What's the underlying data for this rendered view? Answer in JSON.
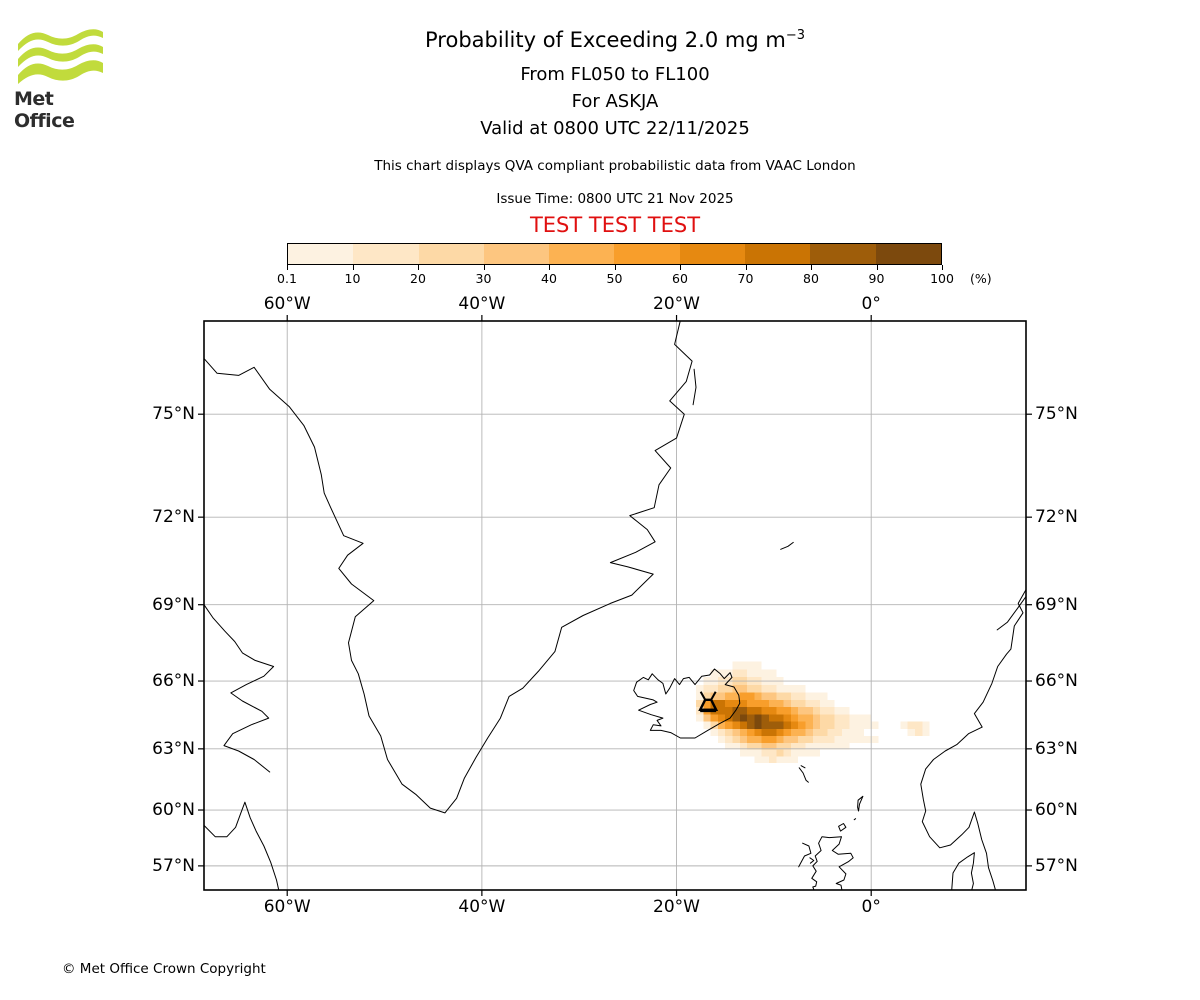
{
  "branding": {
    "logo_text": "Met Office",
    "logo_green": "#c1db3c"
  },
  "header": {
    "title_main": "Probability of Exceeding 2.0 mg m",
    "title_sup": "−3",
    "subtitle1": "From FL050 to FL100",
    "subtitle2": "For ASKJA",
    "subtitle3": "Valid at 0800 UTC 22/11/2025",
    "description": "This chart displays QVA compliant probabilistic data from VAAC London",
    "issue_time": "Issue Time: 0800 UTC 21 Nov 2025",
    "test_banner": "TEST TEST TEST",
    "test_color": "#e01010"
  },
  "colorbar": {
    "tick_labels": [
      "0.1",
      "10",
      "20",
      "30",
      "40",
      "50",
      "60",
      "70",
      "80",
      "90",
      "100"
    ],
    "unit_label": "(%)",
    "bin_colors": [
      "#fdf2e1",
      "#fee7c6",
      "#fdd9a6",
      "#fdc680",
      "#fcb252",
      "#f89e2b",
      "#e68911",
      "#ca7404",
      "#9e5d0a",
      "#7c490d"
    ]
  },
  "map": {
    "extent": {
      "lon_min": -68.55,
      "lon_max": 15.9,
      "lat_min": 55.45,
      "lat_max": 77.4
    },
    "grid_color": "#b3b3b3",
    "lon_labels": [
      {
        "text": "60°W",
        "lon": -60
      },
      {
        "text": "40°W",
        "lon": -40
      },
      {
        "text": "20°W",
        "lon": -20
      },
      {
        "text": "0°",
        "lon": 0
      }
    ],
    "lat_labels": [
      {
        "text": "75°N",
        "lat": 75
      },
      {
        "text": "72°N",
        "lat": 72
      },
      {
        "text": "69°N",
        "lat": 69
      },
      {
        "text": "66°N",
        "lat": 66
      },
      {
        "text": "63°N",
        "lat": 63
      },
      {
        "text": "60°N",
        "lat": 60
      },
      {
        "text": "57°N",
        "lat": 57
      }
    ],
    "coastlines": [
      [
        [
          -68.5,
          76.4
        ],
        [
          -67.2,
          76.05
        ],
        [
          -65.0,
          76.0
        ],
        [
          -63.4,
          76.2
        ],
        [
          -61.8,
          75.65
        ],
        [
          -59.8,
          75.2
        ],
        [
          -58.3,
          74.7
        ],
        [
          -57.2,
          74.1
        ],
        [
          -56.5,
          73.3
        ],
        [
          -56.2,
          72.75
        ],
        [
          -55.6,
          72.35
        ],
        [
          -54.2,
          71.4
        ],
        [
          -52.2,
          71.15
        ],
        [
          -53.8,
          70.75
        ],
        [
          -54.7,
          70.3
        ],
        [
          -53.4,
          69.75
        ],
        [
          -51.1,
          69.15
        ],
        [
          -53.0,
          68.55
        ],
        [
          -53.7,
          67.55
        ],
        [
          -53.4,
          66.85
        ],
        [
          -52.7,
          66.3
        ],
        [
          -52.1,
          65.45
        ],
        [
          -51.6,
          64.5
        ],
        [
          -50.4,
          63.6
        ],
        [
          -49.7,
          62.5
        ],
        [
          -48.2,
          61.3
        ],
        [
          -46.8,
          60.8
        ],
        [
          -45.3,
          60.1
        ],
        [
          -43.8,
          59.85
        ],
        [
          -42.6,
          60.6
        ],
        [
          -41.8,
          61.6
        ],
        [
          -40.6,
          62.6
        ],
        [
          -39.4,
          63.5
        ],
        [
          -38.1,
          64.4
        ],
        [
          -37.2,
          65.35
        ],
        [
          -35.8,
          65.7
        ],
        [
          -34.2,
          66.4
        ],
        [
          -32.5,
          67.2
        ],
        [
          -31.8,
          68.15
        ],
        [
          -29.6,
          68.6
        ],
        [
          -26.8,
          69.05
        ],
        [
          -24.6,
          69.35
        ],
        [
          -22.4,
          70.1
        ],
        [
          -25.0,
          70.35
        ],
        [
          -26.8,
          70.5
        ],
        [
          -24.2,
          70.85
        ],
        [
          -22.2,
          71.2
        ],
        [
          -23.0,
          71.6
        ],
        [
          -24.8,
          72.05
        ],
        [
          -22.3,
          72.3
        ],
        [
          -21.8,
          73.0
        ],
        [
          -20.6,
          73.5
        ],
        [
          -22.2,
          74.0
        ],
        [
          -20.0,
          74.35
        ],
        [
          -19.2,
          75.0
        ],
        [
          -20.7,
          75.35
        ],
        [
          -19.0,
          75.85
        ],
        [
          -18.4,
          76.35
        ],
        [
          -20.2,
          76.75
        ],
        [
          -19.5,
          77.4
        ]
      ],
      [
        [
          -18.2,
          76.15
        ],
        [
          -18.0,
          75.7
        ],
        [
          -18.3,
          75.25
        ]
      ],
      [
        [
          -68.55,
          69.0
        ],
        [
          -67.6,
          68.5
        ],
        [
          -66.4,
          68.0
        ],
        [
          -65.4,
          67.6
        ],
        [
          -64.6,
          67.15
        ],
        [
          -63.3,
          66.85
        ],
        [
          -61.4,
          66.6
        ],
        [
          -62.4,
          66.2
        ],
        [
          -64.2,
          65.85
        ],
        [
          -65.8,
          65.5
        ],
        [
          -64.6,
          65.15
        ],
        [
          -62.6,
          64.7
        ],
        [
          -61.9,
          64.4
        ],
        [
          -63.7,
          64.1
        ],
        [
          -65.6,
          63.7
        ],
        [
          -66.5,
          63.15
        ],
        [
          -65.0,
          62.9
        ],
        [
          -63.4,
          62.5
        ],
        [
          -61.8,
          61.9
        ]
      ],
      [
        [
          -68.55,
          59.2
        ],
        [
          -67.4,
          58.6
        ],
        [
          -66.2,
          58.6
        ],
        [
          -65.3,
          59.1
        ],
        [
          -64.8,
          59.8
        ],
        [
          -64.35,
          60.4
        ],
        [
          -63.8,
          59.6
        ],
        [
          -63.2,
          58.9
        ],
        [
          -62.4,
          58.1
        ],
        [
          -61.7,
          57.2
        ],
        [
          -61.1,
          56.2
        ],
        [
          -60.8,
          55.45
        ]
      ],
      [
        [
          -22.5,
          66.3
        ],
        [
          -21.9,
          66.05
        ],
        [
          -21.4,
          65.9
        ],
        [
          -21.1,
          65.45
        ],
        [
          -20.7,
          65.7
        ],
        [
          -20.2,
          66.1
        ],
        [
          -19.7,
          65.85
        ],
        [
          -19.3,
          66.1
        ],
        [
          -18.7,
          66.15
        ],
        [
          -18.1,
          65.85
        ],
        [
          -17.4,
          66.2
        ],
        [
          -16.6,
          66.25
        ],
        [
          -16.1,
          66.5
        ],
        [
          -15.5,
          66.3
        ],
        [
          -15.1,
          66.1
        ],
        [
          -14.5,
          66.35
        ],
        [
          -14.3,
          66.15
        ],
        [
          -15.0,
          65.85
        ],
        [
          -14.1,
          65.75
        ],
        [
          -13.6,
          65.4
        ],
        [
          -13.5,
          65.05
        ],
        [
          -13.9,
          64.75
        ],
        [
          -14.5,
          64.4
        ],
        [
          -15.6,
          64.15
        ],
        [
          -16.8,
          63.85
        ],
        [
          -18.1,
          63.5
        ],
        [
          -19.6,
          63.5
        ],
        [
          -20.6,
          63.75
        ],
        [
          -21.6,
          63.85
        ],
        [
          -22.7,
          63.85
        ],
        [
          -22.4,
          64.1
        ],
        [
          -21.6,
          64.05
        ],
        [
          -22.0,
          64.3
        ],
        [
          -21.4,
          64.4
        ],
        [
          -22.6,
          64.55
        ],
        [
          -23.9,
          64.75
        ],
        [
          -22.7,
          65.0
        ],
        [
          -22.0,
          65.1
        ],
        [
          -22.4,
          65.2
        ],
        [
          -24.0,
          65.35
        ],
        [
          -24.4,
          65.6
        ],
        [
          -24.1,
          65.95
        ],
        [
          -23.4,
          66.15
        ],
        [
          -22.9,
          66.05
        ],
        [
          -22.5,
          66.3
        ]
      ],
      [
        [
          -9.3,
          70.95
        ],
        [
          -8.55,
          71.05
        ],
        [
          -8.0,
          71.18
        ]
      ],
      [
        [
          15.9,
          69.55
        ],
        [
          15.1,
          69.05
        ],
        [
          15.6,
          68.7
        ],
        [
          14.7,
          68.2
        ],
        [
          14.35,
          67.3
        ],
        [
          13.9,
          67.1
        ],
        [
          13.0,
          66.6
        ],
        [
          12.4,
          65.9
        ],
        [
          11.5,
          65.1
        ],
        [
          10.6,
          64.6
        ],
        [
          11.4,
          64.0
        ],
        [
          10.0,
          63.7
        ],
        [
          8.8,
          63.2
        ],
        [
          7.6,
          62.9
        ],
        [
          6.4,
          62.5
        ],
        [
          5.6,
          62.05
        ],
        [
          5.1,
          61.3
        ],
        [
          5.35,
          60.55
        ],
        [
          5.6,
          59.95
        ],
        [
          5.25,
          59.4
        ],
        [
          6.0,
          58.6
        ],
        [
          7.05,
          58.0
        ],
        [
          8.15,
          58.15
        ],
        [
          9.3,
          58.7
        ],
        [
          10.05,
          59.1
        ],
        [
          10.6,
          59.9
        ],
        [
          10.95,
          59.3
        ],
        [
          11.35,
          58.45
        ],
        [
          11.85,
          57.7
        ],
        [
          12.05,
          56.9
        ],
        [
          12.5,
          56.15
        ],
        [
          12.85,
          55.45
        ]
      ],
      [
        [
          15.9,
          69.3
        ],
        [
          15.0,
          68.85
        ],
        [
          14.0,
          68.35
        ],
        [
          12.95,
          68.05
        ]
      ],
      [
        [
          8.25,
          55.45
        ],
        [
          8.4,
          56.6
        ],
        [
          9.0,
          57.15
        ],
        [
          9.9,
          57.5
        ],
        [
          10.6,
          57.73
        ],
        [
          10.5,
          57.15
        ],
        [
          10.3,
          56.6
        ],
        [
          10.5,
          56.0
        ],
        [
          10.25,
          55.45
        ]
      ],
      [
        [
          -2.95,
          55.45
        ],
        [
          -3.1,
          55.9
        ],
        [
          -3.6,
          56.0
        ],
        [
          -2.8,
          56.2
        ],
        [
          -2.6,
          56.55
        ],
        [
          -3.3,
          56.95
        ],
        [
          -2.3,
          57.25
        ],
        [
          -1.85,
          57.45
        ],
        [
          -2.1,
          57.7
        ],
        [
          -3.4,
          57.65
        ],
        [
          -4.0,
          57.85
        ],
        [
          -3.3,
          58.2
        ],
        [
          -3.05,
          58.6
        ],
        [
          -4.3,
          58.55
        ],
        [
          -5.05,
          58.6
        ],
        [
          -5.4,
          58.25
        ],
        [
          -5.15,
          57.85
        ],
        [
          -5.75,
          57.55
        ],
        [
          -5.55,
          57.25
        ],
        [
          -6.0,
          57.0
        ],
        [
          -5.65,
          56.7
        ],
        [
          -6.1,
          56.3
        ],
        [
          -5.6,
          56.1
        ],
        [
          -5.7,
          55.85
        ],
        [
          -6.0,
          55.8
        ],
        [
          -5.75,
          55.45
        ]
      ],
      [
        [
          -7.05,
          58.25
        ],
        [
          -6.4,
          58.1
        ],
        [
          -6.2,
          57.7
        ],
        [
          -6.85,
          57.55
        ],
        [
          -7.3,
          57.1
        ],
        [
          -7.45,
          56.95
        ]
      ],
      [
        [
          -6.3,
          57.45
        ],
        [
          -5.9,
          57.3
        ],
        [
          -6.25,
          57.15
        ]
      ],
      [
        [
          -3.35,
          59.15
        ],
        [
          -2.85,
          59.3
        ],
        [
          -2.6,
          59.1
        ],
        [
          -3.15,
          58.9
        ],
        [
          -3.35,
          59.15
        ]
      ],
      [
        [
          -1.3,
          59.95
        ],
        [
          -1.2,
          60.3
        ],
        [
          -0.85,
          60.7
        ],
        [
          -1.35,
          60.5
        ],
        [
          -1.4,
          60.15
        ],
        [
          -1.3,
          59.95
        ]
      ],
      [
        [
          -1.75,
          59.5
        ],
        [
          -1.6,
          59.55
        ]
      ],
      [
        [
          -7.4,
          62.1
        ],
        [
          -7.0,
          61.85
        ],
        [
          -6.7,
          61.5
        ],
        [
          -6.45,
          61.4
        ]
      ],
      [
        [
          -7.2,
          62.2
        ],
        [
          -6.8,
          62.1
        ]
      ]
    ]
  },
  "chart_data": {
    "type": "heatmap",
    "title": "Probability of Exceeding 2.0 mg m−3 (%)",
    "units": "%",
    "probability_bins": [
      0.1,
      10,
      20,
      30,
      40,
      50,
      60,
      70,
      80,
      90,
      100
    ],
    "legend_position": "top",
    "volcano": {
      "name": "ASKJA",
      "lon": -16.75,
      "lat": 65.03
    },
    "grid": {
      "note": "each char is a probability bin index: 0=none, 1=0.1-10% ... 9=80-90%, a=90-100%",
      "lon0": -23.25,
      "dlon": 0.75,
      "lat0": 66.8,
      "dlat": 0.32,
      "rows": [
        "0000000000001111000000000000000000000000",
        "0000000001112211110000000000000000000000",
        "0000000011223322111000000000000000000000",
        "0000000122334433221111000000000000000000",
        "0000000134455665443322111000000000000000",
        "0000000368877766655433221100000000000000",
        "0000000268889988776654432211000000000000",
        "0000000146789a9a988765543322111000000000",
        "000000001356789a999876543322111100012210",
        "0000000001234567887655433221110000001210",
        "0000000000123455665443322211111100000000",
        "0000000000011233443322111111000000000000",
        "0000000000000111223211110000000000000000",
        "0000000000000001121110000000000000000000"
      ]
    }
  },
  "footer": {
    "copyright": "© Met Office Crown Copyright"
  }
}
